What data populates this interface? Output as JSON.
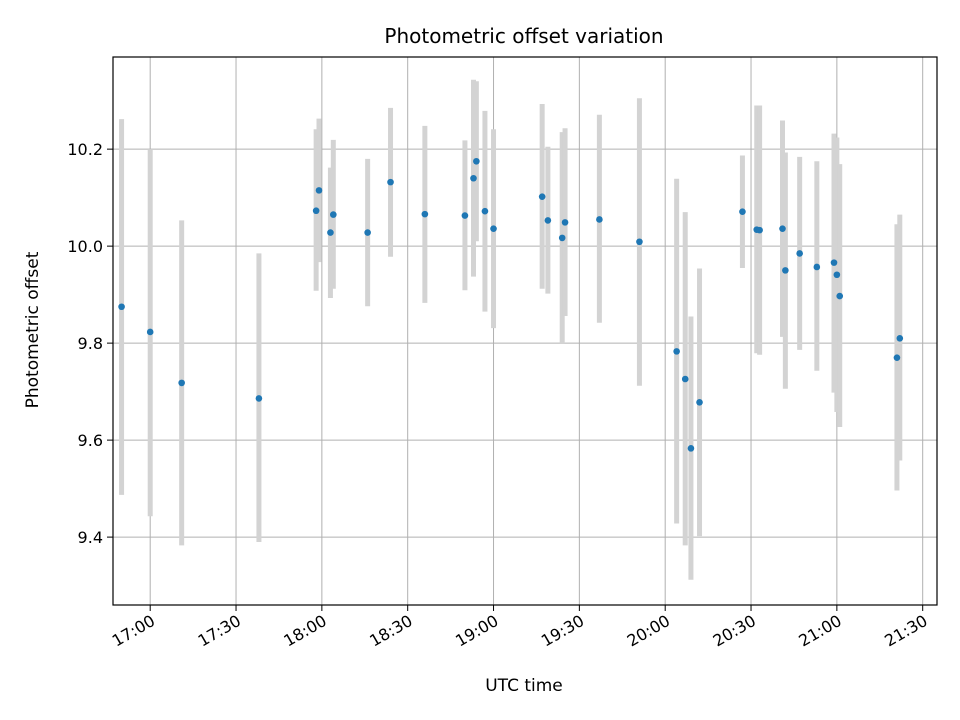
{
  "chart_data": {
    "type": "scatter",
    "title": "Photometric offset variation",
    "xlabel": "UTC time",
    "ylabel": "Photometric offset",
    "x_ticks": [
      "17:00",
      "17:30",
      "18:00",
      "18:30",
      "19:00",
      "19:30",
      "20:00",
      "20:30",
      "21:00",
      "21:30"
    ],
    "y_ticks": [
      "9.4",
      "9.6",
      "9.8",
      "10.0",
      "10.2"
    ],
    "xlim": [
      "16:47",
      "21:35"
    ],
    "ylim": [
      9.26,
      10.39
    ],
    "grid": true,
    "colors": {
      "point": "#1f77b4",
      "errorbar": "#d3d3d3",
      "grid": "#b0b0b0"
    },
    "points": [
      {
        "x": "16:50",
        "y": 9.875,
        "lo": 9.487,
        "hi": 10.262
      },
      {
        "x": "17:00",
        "y": 9.823,
        "lo": 9.443,
        "hi": 10.2
      },
      {
        "x": "17:11",
        "y": 9.718,
        "lo": 9.383,
        "hi": 10.053
      },
      {
        "x": "17:38",
        "y": 9.686,
        "lo": 9.39,
        "hi": 9.985
      },
      {
        "x": "17:58",
        "y": 10.073,
        "lo": 9.908,
        "hi": 10.241
      },
      {
        "x": "17:59",
        "y": 10.115,
        "lo": 9.967,
        "hi": 10.263
      },
      {
        "x": "18:03",
        "y": 10.028,
        "lo": 9.893,
        "hi": 10.162
      },
      {
        "x": "18:04",
        "y": 10.065,
        "lo": 9.912,
        "hi": 10.219
      },
      {
        "x": "18:16",
        "y": 10.028,
        "lo": 9.876,
        "hi": 10.18
      },
      {
        "x": "18:24",
        "y": 10.132,
        "lo": 9.978,
        "hi": 10.285
      },
      {
        "x": "18:36",
        "y": 10.066,
        "lo": 9.883,
        "hi": 10.248
      },
      {
        "x": "18:50",
        "y": 10.063,
        "lo": 9.909,
        "hi": 10.218
      },
      {
        "x": "18:53",
        "y": 10.14,
        "lo": 9.937,
        "hi": 10.343
      },
      {
        "x": "18:54",
        "y": 10.175,
        "lo": 10.01,
        "hi": 10.34
      },
      {
        "x": "18:57",
        "y": 10.072,
        "lo": 9.865,
        "hi": 10.279
      },
      {
        "x": "19:00",
        "y": 10.036,
        "lo": 9.831,
        "hi": 10.241
      },
      {
        "x": "19:17",
        "y": 10.102,
        "lo": 9.912,
        "hi": 10.293
      },
      {
        "x": "19:19",
        "y": 10.053,
        "lo": 9.902,
        "hi": 10.205
      },
      {
        "x": "19:24",
        "y": 10.017,
        "lo": 9.8,
        "hi": 10.235
      },
      {
        "x": "19:25",
        "y": 10.049,
        "lo": 9.856,
        "hi": 10.243
      },
      {
        "x": "19:37",
        "y": 10.055,
        "lo": 9.842,
        "hi": 10.271
      },
      {
        "x": "19:51",
        "y": 10.009,
        "lo": 9.712,
        "hi": 10.305
      },
      {
        "x": "20:04",
        "y": 9.783,
        "lo": 9.428,
        "hi": 10.139
      },
      {
        "x": "20:07",
        "y": 9.726,
        "lo": 9.383,
        "hi": 10.07
      },
      {
        "x": "20:09",
        "y": 9.583,
        "lo": 9.312,
        "hi": 9.855
      },
      {
        "x": "20:12",
        "y": 9.678,
        "lo": 9.402,
        "hi": 9.954
      },
      {
        "x": "20:27",
        "y": 10.071,
        "lo": 9.955,
        "hi": 10.187
      },
      {
        "x": "20:32",
        "y": 10.034,
        "lo": 9.779,
        "hi": 10.29
      },
      {
        "x": "20:33",
        "y": 10.033,
        "lo": 9.776,
        "hi": 10.29
      },
      {
        "x": "20:41",
        "y": 10.036,
        "lo": 9.813,
        "hi": 10.259
      },
      {
        "x": "20:42",
        "y": 9.95,
        "lo": 9.706,
        "hi": 10.193
      },
      {
        "x": "20:47",
        "y": 9.985,
        "lo": 9.786,
        "hi": 10.184
      },
      {
        "x": "20:53",
        "y": 9.957,
        "lo": 9.743,
        "hi": 10.175
      },
      {
        "x": "20:59",
        "y": 9.966,
        "lo": 9.698,
        "hi": 10.232
      },
      {
        "x": "21:00",
        "y": 9.941,
        "lo": 9.658,
        "hi": 10.224
      },
      {
        "x": "21:01",
        "y": 9.897,
        "lo": 9.627,
        "hi": 10.169
      },
      {
        "x": "21:21",
        "y": 9.77,
        "lo": 9.496,
        "hi": 10.045
      },
      {
        "x": "21:22",
        "y": 9.81,
        "lo": 9.558,
        "hi": 10.065
      }
    ]
  }
}
